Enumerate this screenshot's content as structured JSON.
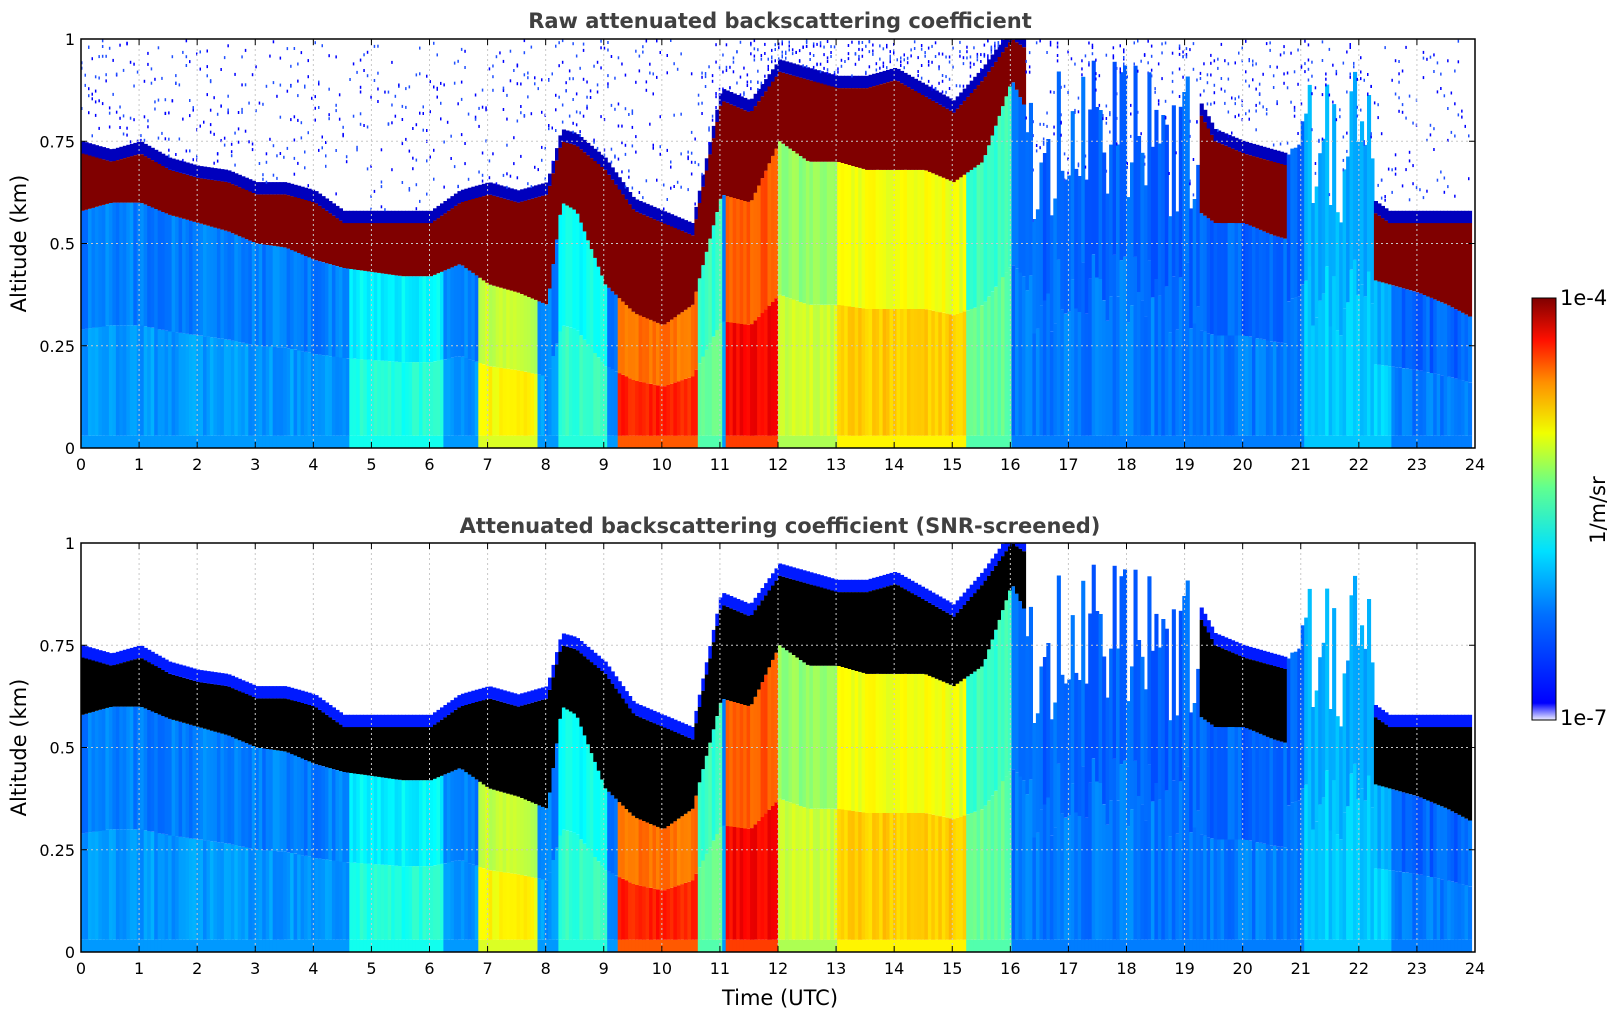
{
  "chart_data": [
    {
      "type": "heatmap",
      "title": "Raw attenuated backscattering coefficient",
      "xlabel": "",
      "ylabel": "Altitude (km)",
      "xlim": [
        0,
        24
      ],
      "ylim": [
        0,
        1
      ],
      "xticks": [
        "0",
        "1",
        "2",
        "3",
        "4",
        "5",
        "6",
        "7",
        "8",
        "9",
        "10",
        "11",
        "12",
        "13",
        "14",
        "15",
        "16",
        "17",
        "18",
        "19",
        "20",
        "21",
        "22",
        "23",
        "24"
      ],
      "yticks": [
        "0",
        "0.25",
        "0.5",
        "0.75",
        "1"
      ],
      "grid": true,
      "screened": false
    },
    {
      "type": "heatmap",
      "title": "Attenuated backscattering coefficient (SNR-screened)",
      "xlabel": "Time (UTC)",
      "ylabel": "Altitude (km)",
      "xlim": [
        0,
        24
      ],
      "ylim": [
        0,
        1
      ],
      "xticks": [
        "0",
        "1",
        "2",
        "3",
        "4",
        "5",
        "6",
        "7",
        "8",
        "9",
        "10",
        "11",
        "12",
        "13",
        "14",
        "15",
        "16",
        "17",
        "18",
        "19",
        "20",
        "21",
        "22",
        "23",
        "24"
      ],
      "yticks": [
        "0",
        "0.25",
        "0.5",
        "0.75",
        "1"
      ],
      "grid": true,
      "screened": true
    }
  ],
  "colorbar": {
    "label": "1/m/sr",
    "max_label": "1e-4",
    "min_label": "1e-7",
    "range": [
      1e-07,
      0.0001
    ],
    "scale": "log",
    "colormap": "jet"
  },
  "cloud_base_profile": {
    "x_hours": [
      0,
      0.5,
      1,
      1.5,
      2,
      2.5,
      3,
      3.5,
      4,
      4.5,
      5,
      5.5,
      6,
      6.5,
      7,
      7.5,
      8,
      8.25,
      8.5,
      9,
      9.5,
      10,
      10.5,
      11,
      11.5,
      12,
      12.5,
      13,
      13.5,
      14,
      14.5,
      15,
      15.5,
      16,
      16.5,
      17,
      17.5,
      18,
      18.5,
      19,
      19.5,
      20,
      20.5,
      21,
      21.5,
      22,
      22.5,
      23,
      23.5,
      23.9
    ],
    "top_km": [
      0.72,
      0.7,
      0.72,
      0.68,
      0.66,
      0.65,
      0.62,
      0.62,
      0.6,
      0.55,
      0.55,
      0.55,
      0.55,
      0.6,
      0.62,
      0.6,
      0.62,
      0.75,
      0.74,
      0.68,
      0.58,
      0.55,
      0.52,
      0.85,
      0.82,
      0.92,
      0.9,
      0.88,
      0.88,
      0.9,
      0.86,
      0.82,
      0.9,
      1.0,
      0.95,
      0.95,
      0.95,
      0.9,
      0.9,
      0.88,
      0.75,
      0.72,
      0.7,
      0.68,
      0.62,
      0.6,
      0.55,
      0.55,
      0.55,
      0.55
    ],
    "base_km": [
      0.58,
      0.6,
      0.6,
      0.57,
      0.55,
      0.53,
      0.5,
      0.49,
      0.46,
      0.44,
      0.43,
      0.42,
      0.42,
      0.45,
      0.4,
      0.38,
      0.35,
      0.6,
      0.58,
      0.4,
      0.33,
      0.3,
      0.35,
      0.62,
      0.6,
      0.75,
      0.7,
      0.7,
      0.68,
      0.68,
      0.68,
      0.65,
      0.7,
      0.9,
      0.75,
      0.7,
      0.7,
      0.65,
      0.62,
      0.6,
      0.55,
      0.55,
      0.52,
      0.5,
      0.46,
      0.42,
      0.4,
      0.38,
      0.35,
      0.32
    ],
    "cloud_present": [
      1,
      1,
      1,
      1,
      1,
      1,
      1,
      1,
      1,
      1,
      1,
      1,
      1,
      1,
      1,
      1,
      1,
      1,
      1,
      1,
      1,
      1,
      1,
      1,
      1,
      1,
      1,
      1,
      1,
      1,
      1,
      1,
      1,
      1,
      0,
      0,
      0,
      0,
      0,
      0,
      1,
      1,
      1,
      0,
      0,
      0,
      1,
      1,
      1,
      1
    ]
  }
}
